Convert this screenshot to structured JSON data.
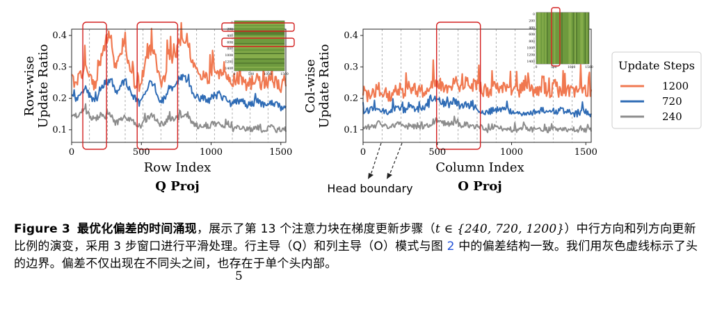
{
  "chart_data": [
    {
      "type": "line",
      "panel": "left",
      "title": "Q Proj",
      "xlabel": "Row Index",
      "ylabel_lines": [
        "Row-wise",
        "Update Ratio"
      ],
      "xlim": [
        0,
        1536
      ],
      "ylim": [
        0.06,
        0.42
      ],
      "xticks": [
        0,
        500,
        1000,
        1500
      ],
      "yticks": [
        0.1,
        0.2,
        0.3,
        0.4
      ],
      "xtick_labels": [
        "0",
        "500",
        "1000",
        "1500"
      ],
      "ytick_labels": [
        "0.1",
        "0.2",
        "0.3",
        "0.4"
      ],
      "head_boundaries": [
        128,
        256,
        384,
        512,
        640,
        768,
        896,
        1024,
        1152,
        1280,
        1408
      ],
      "highlight_ranges": [
        [
          80,
          250
        ],
        [
          470,
          760
        ]
      ],
      "series": [
        {
          "name": "1200",
          "color": "#f07850",
          "values": [
            0.26,
            0.25,
            0.28,
            0.3,
            0.26,
            0.24,
            0.33,
            0.38,
            0.4,
            0.3,
            0.35,
            0.39,
            0.28,
            0.25,
            0.22,
            0.31,
            0.36,
            0.34,
            0.26,
            0.25,
            0.34,
            0.32,
            0.37,
            0.4,
            0.38,
            0.3,
            0.28,
            0.27,
            0.26,
            0.28,
            0.29,
            0.27,
            0.26,
            0.25,
            0.27,
            0.26,
            0.24,
            0.25,
            0.26,
            0.24,
            0.25,
            0.26,
            0.25,
            0.24,
            0.26
          ]
        },
        {
          "name": "720",
          "color": "#2e6bb5",
          "values": [
            0.21,
            0.2,
            0.22,
            0.23,
            0.2,
            0.19,
            0.24,
            0.25,
            0.26,
            0.22,
            0.24,
            0.26,
            0.22,
            0.2,
            0.18,
            0.22,
            0.25,
            0.24,
            0.2,
            0.19,
            0.24,
            0.23,
            0.26,
            0.27,
            0.25,
            0.21,
            0.2,
            0.2,
            0.19,
            0.21,
            0.21,
            0.2,
            0.19,
            0.18,
            0.19,
            0.19,
            0.18,
            0.18,
            0.19,
            0.18,
            0.18,
            0.19,
            0.18,
            0.17,
            0.18
          ]
        },
        {
          "name": "240",
          "color": "#8c8c8c",
          "values": [
            0.15,
            0.14,
            0.16,
            0.16,
            0.14,
            0.13,
            0.15,
            0.14,
            0.15,
            0.12,
            0.13,
            0.14,
            0.13,
            0.12,
            0.11,
            0.13,
            0.14,
            0.14,
            0.12,
            0.12,
            0.14,
            0.13,
            0.14,
            0.15,
            0.14,
            0.12,
            0.11,
            0.11,
            0.11,
            0.12,
            0.12,
            0.11,
            0.11,
            0.1,
            0.11,
            0.11,
            0.1,
            0.1,
            0.11,
            0.1,
            0.1,
            0.11,
            0.1,
            0.1,
            0.1
          ]
        }
      ],
      "inset": {
        "type": "heatmap",
        "ticks": [
          "0",
          "200",
          "400",
          "600",
          "800",
          "1000",
          "1200",
          "1400"
        ],
        "highlight": "rows"
      }
    },
    {
      "type": "line",
      "panel": "right",
      "title": "O Proj",
      "xlabel": "Column Index",
      "ylabel_lines": [
        "Col-wise",
        "Update Ratio"
      ],
      "xlim": [
        0,
        1536
      ],
      "ylim": [
        0.06,
        0.42
      ],
      "xticks": [
        0,
        500,
        1000,
        1500
      ],
      "yticks": [
        0.1,
        0.2,
        0.3,
        0.4
      ],
      "xtick_labels": [
        "0",
        "500",
        "1000",
        "1500"
      ],
      "ytick_labels": [
        "0.1",
        "0.2",
        "0.3",
        "0.4"
      ],
      "head_boundaries": [
        128,
        256,
        384,
        512,
        640,
        768,
        896,
        1024,
        1152,
        1280,
        1408
      ],
      "highlight_ranges": [
        [
          495,
          790
        ]
      ],
      "annotation": "Head boundary",
      "series": [
        {
          "name": "1200",
          "color": "#f07850",
          "values": [
            0.22,
            0.21,
            0.22,
            0.23,
            0.22,
            0.21,
            0.22,
            0.23,
            0.22,
            0.24,
            0.23,
            0.22,
            0.23,
            0.24,
            0.26,
            0.24,
            0.23,
            0.24,
            0.25,
            0.23,
            0.26,
            0.24,
            0.25,
            0.23,
            0.22,
            0.23,
            0.24,
            0.23,
            0.22,
            0.23,
            0.22,
            0.24,
            0.22,
            0.23,
            0.22,
            0.23,
            0.22,
            0.24,
            0.22,
            0.23,
            0.22,
            0.22,
            0.23,
            0.22,
            0.22
          ]
        },
        {
          "name": "720",
          "color": "#2e6bb5",
          "values": [
            0.16,
            0.16,
            0.17,
            0.17,
            0.16,
            0.16,
            0.17,
            0.17,
            0.16,
            0.17,
            0.17,
            0.16,
            0.17,
            0.18,
            0.2,
            0.19,
            0.18,
            0.18,
            0.19,
            0.17,
            0.18,
            0.17,
            0.17,
            0.16,
            0.16,
            0.16,
            0.17,
            0.16,
            0.16,
            0.16,
            0.15,
            0.16,
            0.15,
            0.16,
            0.16,
            0.16,
            0.16,
            0.16,
            0.16,
            0.16,
            0.15,
            0.15,
            0.16,
            0.16,
            0.15
          ]
        },
        {
          "name": "240",
          "color": "#8c8c8c",
          "values": [
            0.11,
            0.11,
            0.11,
            0.12,
            0.11,
            0.11,
            0.11,
            0.12,
            0.11,
            0.11,
            0.11,
            0.11,
            0.11,
            0.12,
            0.13,
            0.12,
            0.12,
            0.12,
            0.12,
            0.11,
            0.12,
            0.11,
            0.11,
            0.11,
            0.1,
            0.11,
            0.11,
            0.1,
            0.1,
            0.1,
            0.1,
            0.11,
            0.1,
            0.1,
            0.1,
            0.1,
            0.1,
            0.1,
            0.1,
            0.1,
            0.1,
            0.1,
            0.1,
            0.1,
            0.1
          ]
        }
      ],
      "inset": {
        "type": "heatmap",
        "ticks": [
          "0",
          "200",
          "400",
          "600",
          "800",
          "1000",
          "1200",
          "1400"
        ],
        "highlight": "column"
      }
    }
  ],
  "legend": {
    "title": "Update Steps",
    "entries": [
      {
        "label": "1200",
        "color": "#f07850"
      },
      {
        "label": "720",
        "color": "#2e6bb5"
      },
      {
        "label": "240",
        "color": "#8c8c8c"
      }
    ]
  },
  "caption": {
    "label": "Figure 3",
    "title": "最优化偏差的时间涌现",
    "text_1": "，展示了第 13 个注意力块在梯度更新步骤（",
    "math": "t ∈ {240, 720, 1200}",
    "text_2": "）中行方向和列方向更新比例的演变，采用 3 步窗口进行平滑处理。行主导（Q）和列主导（O）模式与图 ",
    "ref": "2",
    "text_3": " 中的偏差结构一致。我们用灰色虚线标示了头的边界。偏差不仅出现在不同头之间，也存在于单个头内部。"
  },
  "page_number": "5"
}
